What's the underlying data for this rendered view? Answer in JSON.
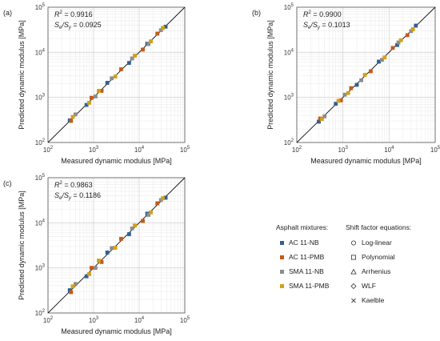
{
  "chart_data": [
    {
      "type": "scatter",
      "panel_label": "(a)",
      "xlabel": "Measured dynamic modulus [MPa]",
      "ylabel": "Predicted dynamic modulus [MPa]",
      "x_scale": "log",
      "y_scale": "log",
      "xlim": [
        100,
        100000
      ],
      "ylim": [
        100,
        100000
      ],
      "x_ticks": [
        {
          "base": "10",
          "exp": "2"
        },
        {
          "base": "10",
          "exp": "3"
        },
        {
          "base": "10",
          "exp": "4"
        },
        {
          "base": "10",
          "exp": "5"
        }
      ],
      "y_ticks": [
        {
          "base": "10",
          "exp": "2"
        },
        {
          "base": "10",
          "exp": "3"
        },
        {
          "base": "10",
          "exp": "4"
        },
        {
          "base": "10",
          "exp": "5"
        }
      ],
      "grid": true,
      "reference_line": "y = x",
      "stats": {
        "r2_label": "R",
        "r2_value": "= 0.9916",
        "se_label": "S",
        "se_value": "= 0.0925"
      },
      "series": [
        {
          "name": "AC 11-NB",
          "color": "#2f5f97",
          "points": [
            [
              300,
              310
            ],
            [
              700,
              680
            ],
            [
              2000,
              2100
            ],
            [
              6000,
              5800
            ],
            [
              15000,
              15500
            ],
            [
              38000,
              37000
            ]
          ]
        },
        {
          "name": "AC 11-PMB",
          "color": "#c55a1a",
          "points": [
            [
              320,
              300
            ],
            [
              900,
              980
            ],
            [
              1500,
              1400
            ],
            [
              4000,
              4200
            ],
            [
              12000,
              11500
            ],
            [
              25000,
              26000
            ]
          ]
        },
        {
          "name": "SMA 11-NB",
          "color": "#8c8c8c",
          "points": [
            [
              400,
              420
            ],
            [
              1100,
              1050
            ],
            [
              2500,
              2650
            ],
            [
              7000,
              7300
            ],
            [
              16000,
              15200
            ],
            [
              30000,
              31000
            ]
          ]
        },
        {
          "name": "SMA 11-PMB",
          "color": "#d4a017",
          "points": [
            [
              350,
              370
            ],
            [
              800,
              760
            ],
            [
              1300,
              1400
            ],
            [
              3000,
              2900
            ],
            [
              8000,
              8400
            ],
            [
              18000,
              17500
            ],
            [
              33000,
              34500
            ]
          ]
        }
      ]
    },
    {
      "type": "scatter",
      "panel_label": "(b)",
      "xlabel": "Measured dynamic modulus [MPa]",
      "ylabel": "Predicted dynamic modulus [MPa]",
      "x_scale": "log",
      "y_scale": "log",
      "xlim": [
        100,
        100000
      ],
      "ylim": [
        100,
        100000
      ],
      "x_ticks": [
        {
          "base": "10",
          "exp": "2"
        },
        {
          "base": "10",
          "exp": "3"
        },
        {
          "base": "10",
          "exp": "4"
        },
        {
          "base": "10",
          "exp": "5"
        }
      ],
      "y_ticks": [
        {
          "base": "10",
          "exp": "2"
        },
        {
          "base": "10",
          "exp": "3"
        },
        {
          "base": "10",
          "exp": "4"
        },
        {
          "base": "10",
          "exp": "5"
        }
      ],
      "grid": true,
      "reference_line": "y = x",
      "stats": {
        "r2_label": "R",
        "r2_value": "= 0.9900",
        "se_label": "S",
        "se_value": "= 0.1013"
      },
      "series": [
        {
          "name": "AC 11-NB",
          "color": "#2f5f97",
          "points": [
            [
              300,
              290
            ],
            [
              700,
              720
            ],
            [
              2000,
              1900
            ],
            [
              6000,
              6200
            ],
            [
              15000,
              14500
            ],
            [
              38000,
              39000
            ]
          ]
        },
        {
          "name": "AC 11-PMB",
          "color": "#c55a1a",
          "points": [
            [
              320,
              340
            ],
            [
              900,
              860
            ],
            [
              1500,
              1600
            ],
            [
              4000,
              3800
            ],
            [
              12000,
              12500
            ],
            [
              25000,
              24000
            ]
          ]
        },
        {
          "name": "SMA 11-NB",
          "color": "#8c8c8c",
          "points": [
            [
              400,
              380
            ],
            [
              1100,
              1150
            ],
            [
              2500,
              2400
            ],
            [
              7000,
              6800
            ],
            [
              16000,
              16500
            ],
            [
              30000,
              29500
            ]
          ]
        },
        {
          "name": "SMA 11-PMB",
          "color": "#d4a017",
          "points": [
            [
              350,
              330
            ],
            [
              800,
              840
            ],
            [
              1300,
              1250
            ],
            [
              3000,
              3150
            ],
            [
              8000,
              7700
            ],
            [
              18000,
              18500
            ],
            [
              33000,
              32500
            ]
          ]
        }
      ]
    },
    {
      "type": "scatter",
      "panel_label": "(c)",
      "xlabel": "Measured dynamic modulus [MPa]",
      "ylabel": "Predicted dynamic modulus [MPa]",
      "x_scale": "log",
      "y_scale": "log",
      "xlim": [
        100,
        100000
      ],
      "ylim": [
        100,
        100000
      ],
      "x_ticks": [
        {
          "base": "10",
          "exp": "2"
        },
        {
          "base": "10",
          "exp": "3"
        },
        {
          "base": "10",
          "exp": "4"
        },
        {
          "base": "10",
          "exp": "5"
        }
      ],
      "y_ticks": [
        {
          "base": "10",
          "exp": "2"
        },
        {
          "base": "10",
          "exp": "3"
        },
        {
          "base": "10",
          "exp": "4"
        },
        {
          "base": "10",
          "exp": "5"
        }
      ],
      "grid": true,
      "reference_line": "y = x",
      "stats": {
        "r2_label": "R",
        "r2_value": "= 0.9863",
        "se_label": "S",
        "se_value": "= 0.1186"
      },
      "series": [
        {
          "name": "AC 11-NB",
          "color": "#2f5f97",
          "points": [
            [
              300,
              320
            ],
            [
              700,
              650
            ],
            [
              2000,
              2200
            ],
            [
              6000,
              5600
            ],
            [
              15000,
              16000
            ],
            [
              38000,
              36000
            ]
          ]
        },
        {
          "name": "AC 11-PMB",
          "color": "#c55a1a",
          "points": [
            [
              320,
              290
            ],
            [
              900,
              1000
            ],
            [
              1500,
              1350
            ],
            [
              4000,
              4400
            ],
            [
              12000,
              11000
            ],
            [
              25000,
              27000
            ]
          ]
        },
        {
          "name": "SMA 11-NB",
          "color": "#8c8c8c",
          "points": [
            [
              400,
              440
            ],
            [
              1100,
              1000
            ],
            [
              2500,
              2750
            ],
            [
              7000,
              7500
            ],
            [
              16000,
              15000
            ],
            [
              30000,
              32000
            ]
          ]
        },
        {
          "name": "SMA 11-PMB",
          "color": "#d4a017",
          "points": [
            [
              350,
              390
            ],
            [
              800,
              730
            ],
            [
              1300,
              1450
            ],
            [
              3000,
              2800
            ],
            [
              8000,
              8700
            ],
            [
              18000,
              17000
            ],
            [
              33000,
              35000
            ]
          ]
        }
      ]
    }
  ],
  "legend": {
    "mixtures_title": "Asphalt mixtures:",
    "mixtures": [
      {
        "label": "AC 11-NB",
        "color": "#2f5f97"
      },
      {
        "label": "AC 11-PMB",
        "color": "#c55a1a"
      },
      {
        "label": "SMA 11-NB",
        "color": "#8c8c8c"
      },
      {
        "label": "SMA 11-PMB",
        "color": "#d4a017"
      }
    ],
    "shift_title": "Shift factor equations:",
    "shift": [
      {
        "label": "Log-linear",
        "marker": "circle"
      },
      {
        "label": "Polynomial",
        "marker": "square"
      },
      {
        "label": "Arrhenius",
        "marker": "triangle"
      },
      {
        "label": "WLF",
        "marker": "diamond"
      },
      {
        "label": "Kaelble",
        "marker": "cross"
      }
    ]
  }
}
